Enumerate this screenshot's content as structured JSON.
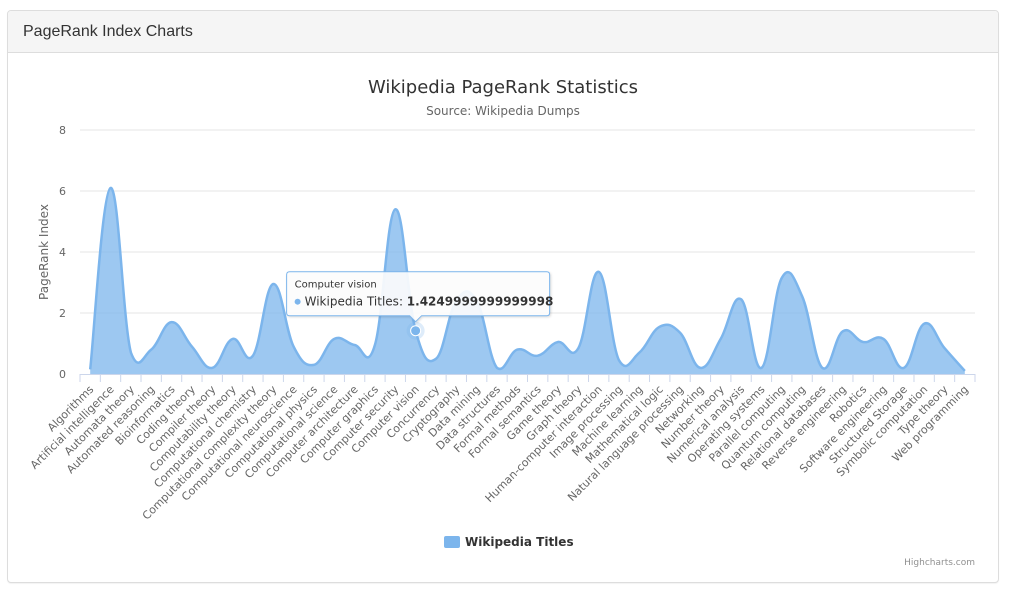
{
  "panel": {
    "title": "PageRank Index Charts"
  },
  "chart_data": {
    "type": "area",
    "title": "Wikipedia PageRank Statistics",
    "subtitle": "Source: Wikipedia Dumps",
    "xlabel": "",
    "ylabel": "PageRank Index",
    "ylim": [
      0,
      8
    ],
    "yticks": [
      0,
      2,
      4,
      6,
      8
    ],
    "grid": true,
    "legend_position": "bottom-center",
    "credits": "Highcharts.com",
    "color": "#7cb5ec",
    "categories": [
      "Algorithms",
      "Artificial intelligence",
      "Automata theory",
      "Automated reasoning",
      "Bioinformatics",
      "Coding theory",
      "Compiler theory",
      "Computability theory",
      "Computational chemistry",
      "Computational complexity theory",
      "Computational neuroscience",
      "Computational physics",
      "Computational science",
      "Computer architecture",
      "Computer graphics",
      "Computer security",
      "Computer vision",
      "Concurrency",
      "Cryptography",
      "Data mining",
      "Data structures",
      "Formal methods",
      "Formal semantics",
      "Game theory",
      "Graph theory",
      "Human-computer interaction",
      "Image processing",
      "Machine learning",
      "Mathematical logic",
      "Natural language processing",
      "Networking",
      "Number theory",
      "Numerical analysis",
      "Operating systems",
      "Parallel computing",
      "Quantum computing",
      "Relational databases",
      "Reverse engineering",
      "Robotics",
      "Software engineering",
      "Structured Storage",
      "Symbolic computation",
      "Type theory",
      "Web programming"
    ],
    "series": [
      {
        "name": "Wikipedia Titles",
        "values": [
          0.15,
          6.1,
          0.7,
          0.8,
          1.7,
          0.9,
          0.2,
          1.15,
          0.6,
          2.95,
          0.9,
          0.3,
          1.15,
          0.95,
          0.95,
          5.4,
          1.42,
          0.5,
          2.4,
          2.4,
          0.2,
          0.8,
          0.6,
          1.05,
          0.85,
          3.35,
          0.45,
          0.7,
          1.55,
          1.35,
          0.2,
          1.15,
          2.45,
          0.2,
          3.15,
          2.55,
          0.2,
          1.4,
          1.05,
          1.15,
          0.2,
          1.65,
          0.85,
          0.1
        ]
      }
    ],
    "tooltip": {
      "category": "Computer vision",
      "series": "Wikipedia Titles",
      "value_text": "1.4249999999999998",
      "index": 16
    }
  }
}
